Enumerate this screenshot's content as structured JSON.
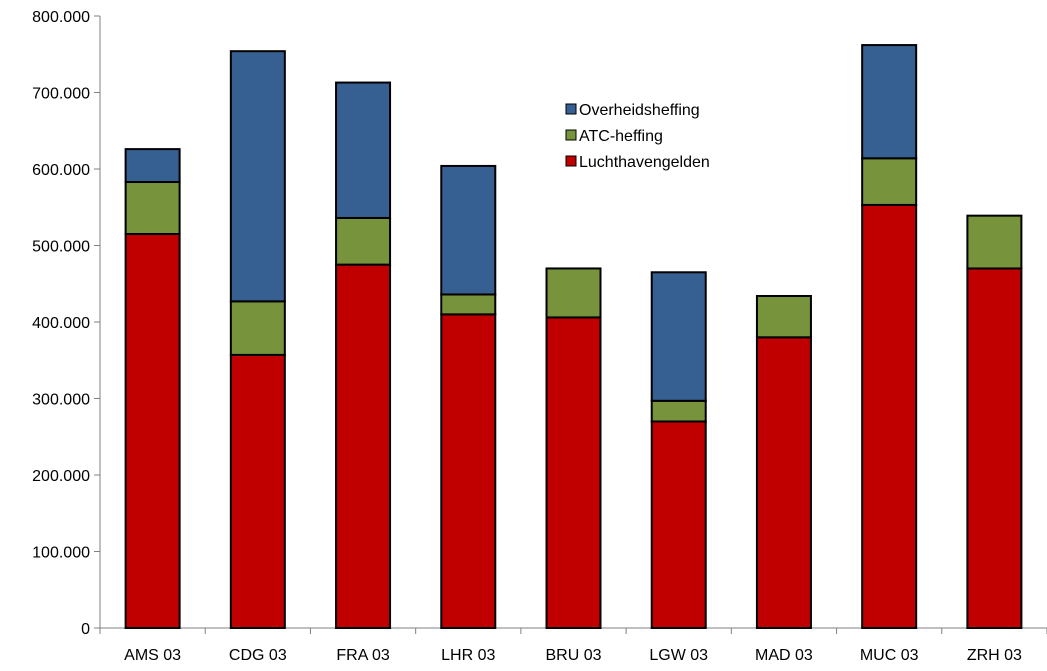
{
  "chart_data": {
    "type": "bar",
    "stacked": true,
    "categories": [
      "AMS 03",
      "CDG 03",
      "FRA 03",
      "LHR 03",
      "BRU 03",
      "LGW 03",
      "MAD 03",
      "MUC 03",
      "ZRH 03"
    ],
    "series": [
      {
        "name": "Luchthavengelden",
        "color": "#C00000",
        "values": [
          515000,
          357000,
          475000,
          410000,
          406000,
          270000,
          380000,
          553000,
          470000
        ]
      },
      {
        "name": "ATC-heffing",
        "color": "#77933C",
        "values": [
          68000,
          70000,
          61000,
          26000,
          64000,
          27000,
          54000,
          61000,
          69000
        ]
      },
      {
        "name": "Overheidsheffing",
        "color": "#376092",
        "values": [
          43000,
          327000,
          177000,
          168000,
          0,
          168000,
          0,
          148000,
          0
        ]
      }
    ],
    "yaxis": {
      "min": 0,
      "max": 800000,
      "tick_labels": [
        "0",
        "100.000",
        "200.000",
        "300.000",
        "400.000",
        "500.000",
        "600.000",
        "700.000",
        "800.000"
      ]
    },
    "legend": {
      "position": "top-center",
      "entries": [
        "Overheidsheffing",
        "ATC-heffing",
        "Luchthavengelden"
      ]
    },
    "grid": false,
    "title": "",
    "xlabel": "",
    "ylabel": ""
  }
}
